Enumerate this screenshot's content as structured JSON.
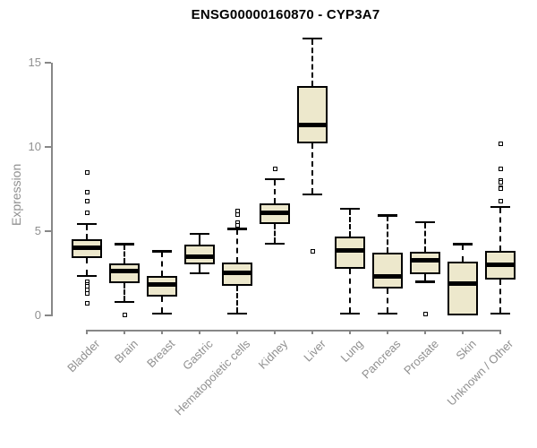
{
  "header": {
    "title": "ENSG00000160870 - CYP3A7"
  },
  "chart_data": {
    "type": "boxplot",
    "title": "ENSG00000160870 - CYP3A7",
    "xlabel": "",
    "ylabel": "Expression",
    "ylim": [
      0,
      16.8
    ],
    "yticks": [
      0,
      5,
      10,
      15
    ],
    "grid": false,
    "legend": "none",
    "categories": [
      "Bladder",
      "Brain",
      "Breast",
      "Gastric",
      "Hematopoietic cells",
      "Kidney",
      "Liver",
      "Lung",
      "Pancreas",
      "Prostate",
      "Skin",
      "Unknown / Other"
    ],
    "series": [
      {
        "name": "Bladder",
        "whislo": 2.3,
        "q1": 3.4,
        "med": 4.0,
        "q3": 4.5,
        "whishi": 5.5,
        "outliers": [
          8.5,
          7.3,
          6.8,
          6.1,
          2.0,
          1.85,
          1.7,
          1.5,
          1.3,
          0.7
        ]
      },
      {
        "name": "Brain",
        "whislo": 0.75,
        "q1": 1.9,
        "med": 2.6,
        "q3": 3.1,
        "whishi": 4.3,
        "outliers": [
          0
        ]
      },
      {
        "name": "Breast",
        "whislo": 0.05,
        "q1": 1.1,
        "med": 1.85,
        "q3": 2.35,
        "whishi": 3.85,
        "outliers": []
      },
      {
        "name": "Gastric",
        "whislo": 2.45,
        "q1": 3.0,
        "med": 3.5,
        "q3": 4.2,
        "whishi": 4.9,
        "outliers": []
      },
      {
        "name": "Hematopoietic cells",
        "whislo": 0.05,
        "q1": 1.75,
        "med": 2.5,
        "q3": 3.15,
        "whishi": 5.2,
        "outliers": [
          6.2,
          6.0,
          5.5,
          5.35
        ]
      },
      {
        "name": "Kidney",
        "whislo": 4.2,
        "q1": 5.4,
        "med": 6.1,
        "q3": 6.65,
        "whishi": 8.15,
        "outliers": [
          8.7
        ]
      },
      {
        "name": "Liver",
        "whislo": 7.15,
        "q1": 10.2,
        "med": 11.3,
        "q3": 13.6,
        "whishi": 16.5,
        "outliers": [
          3.8
        ]
      },
      {
        "name": "Lung",
        "whislo": 0.05,
        "q1": 2.75,
        "med": 3.85,
        "q3": 4.7,
        "whishi": 6.4,
        "outliers": []
      },
      {
        "name": "Pancreas",
        "whislo": 0.05,
        "q1": 1.6,
        "med": 2.3,
        "q3": 3.7,
        "whishi": 6.0,
        "outliers": []
      },
      {
        "name": "Prostate",
        "whislo": 1.95,
        "q1": 2.45,
        "med": 3.25,
        "q3": 3.75,
        "whishi": 5.6,
        "outliers": [
          0.05
        ]
      },
      {
        "name": "Skin",
        "whislo": 0.0,
        "q1": 0.0,
        "med": 1.9,
        "q3": 3.2,
        "whishi": 4.3,
        "outliers": []
      },
      {
        "name": "Unknown / Other",
        "whislo": 0.05,
        "q1": 2.1,
        "med": 3.0,
        "q3": 3.8,
        "whishi": 6.5,
        "outliers": [
          10.2,
          8.7,
          8.0,
          7.9,
          7.6,
          7.5,
          6.8
        ]
      }
    ]
  },
  "colors": {
    "box_fill": "#EDE8CC",
    "box_border": "#000000",
    "median": "#000000",
    "whisker": "#000000",
    "axis": "#878787",
    "tick_label": "#909090",
    "title": "#000000",
    "background": "#FFFFFF"
  }
}
